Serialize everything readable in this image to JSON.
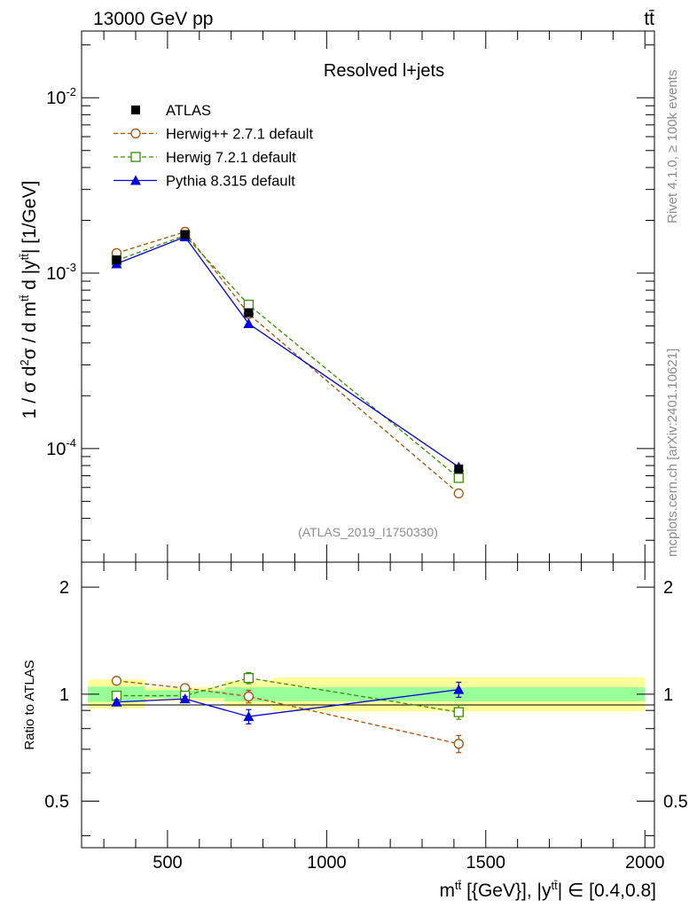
{
  "header": {
    "energy_label": "13000 GeV pp",
    "process_label": "tt̄"
  },
  "side_labels": {
    "rivet": "Rivet 4.1.0, ≥ 100k events",
    "mcplots": "mcplots.cern.ch [arXiv:2401.10621]"
  },
  "chart_data": [
    {
      "type": "line",
      "panel": "main",
      "title": "Resolved l+jets",
      "analysis_id": "(ATLAS_2019_I1750330)",
      "ylabel": "1 / σ d²σ / d m^{tt̄} d |y^{tt̄}| [1/GeV]",
      "yscale": "log",
      "xlim": [
        230,
        2030
      ],
      "ylim": [
        2.25e-05,
        0.024
      ],
      "yticks": [
        {
          "value": 0.0001,
          "base": "10",
          "exp": "-4"
        },
        {
          "value": 0.001,
          "base": "10",
          "exp": "-3"
        },
        {
          "value": 0.01,
          "base": "10",
          "exp": "-2"
        }
      ],
      "legend_position": "top-left",
      "series": [
        {
          "name": "ATLAS",
          "color": "#000000",
          "marker": "square-filled",
          "line": "none",
          "x": [
            340,
            555,
            755,
            1415
          ],
          "y": [
            0.00119,
            0.00166,
            0.000595,
            7.65e-05
          ],
          "xerr": [
            [
              250,
              430
            ],
            [
              430,
              680
            ],
            [
              680,
              830
            ],
            [
              830,
              2000
            ]
          ]
        },
        {
          "name": "Herwig++ 2.7.1 default",
          "color": "#a0520a",
          "marker": "circle-open",
          "line": "dashed",
          "x": [
            340,
            555,
            755,
            1415
          ],
          "y": [
            0.0013,
            0.00172,
            0.000585,
            5.55e-05
          ]
        },
        {
          "name": "Herwig 7.2.1 default",
          "color": "#3c8c00",
          "marker": "square-open",
          "line": "dashed",
          "x": [
            340,
            555,
            755,
            1415
          ],
          "y": [
            0.00118,
            0.00164,
            0.00066,
            6.8e-05
          ]
        },
        {
          "name": "Pythia 8.315 default",
          "color": "#0000e0",
          "marker": "triangle-filled",
          "line": "solid",
          "x": [
            340,
            555,
            755,
            1415
          ],
          "y": [
            0.00113,
            0.00161,
            0.000515,
            7.85e-05
          ]
        }
      ]
    },
    {
      "type": "line",
      "panel": "ratio",
      "ylabel": "Ratio to ATLAS",
      "xlabel": "m^{tt̄} [{GeV}], |y^{tt̄}| ∈ [0.4,0.8]",
      "xlim": [
        230,
        2030
      ],
      "ylim": [
        0.37,
        2.35
      ],
      "yscale": "log",
      "xticks": [
        500,
        1000,
        1500,
        2000
      ],
      "yticks": [
        0.5,
        1,
        2
      ],
      "xtick_labels": [
        "500",
        "1000",
        "1500",
        "2000"
      ],
      "ytick_labels": [
        "0.5",
        "1",
        "2"
      ],
      "bands": [
        {
          "x": [
            250,
            430
          ],
          "stat": [
            0.95,
            1.05
          ],
          "total": [
            0.91,
            1.1
          ]
        },
        {
          "x": [
            430,
            680
          ],
          "stat": [
            0.975,
            1.025
          ],
          "total": [
            0.955,
            1.045
          ]
        },
        {
          "x": [
            680,
            830
          ],
          "stat": [
            0.955,
            1.045
          ],
          "total": [
            0.92,
            1.09
          ]
        },
        {
          "x": [
            830,
            2000
          ],
          "stat": [
            0.955,
            1.045
          ],
          "total": [
            0.895,
            1.115
          ]
        }
      ],
      "series": [
        {
          "name": "Herwig++ 2.7.1 default",
          "color": "#a0520a",
          "marker": "circle-open",
          "line": "dashed",
          "x": [
            340,
            555,
            755,
            1415
          ],
          "y": [
            1.09,
            1.04,
            0.985,
            0.725
          ],
          "yerr": [
            0.015,
            0.015,
            0.04,
            0.04
          ]
        },
        {
          "name": "Herwig 7.2.1 default",
          "color": "#3c8c00",
          "marker": "square-open",
          "line": "dashed",
          "x": [
            340,
            555,
            755,
            1415
          ],
          "y": [
            0.99,
            0.99,
            1.11,
            0.89
          ],
          "yerr": [
            0.015,
            0.015,
            0.04,
            0.04
          ]
        },
        {
          "name": "Pythia 8.315 default",
          "color": "#0000e0",
          "marker": "triangle-filled",
          "line": "solid",
          "x": [
            340,
            555,
            755,
            1415
          ],
          "y": [
            0.95,
            0.97,
            0.865,
            1.03
          ],
          "yerr": [
            0.015,
            0.015,
            0.04,
            0.05
          ]
        }
      ]
    }
  ]
}
